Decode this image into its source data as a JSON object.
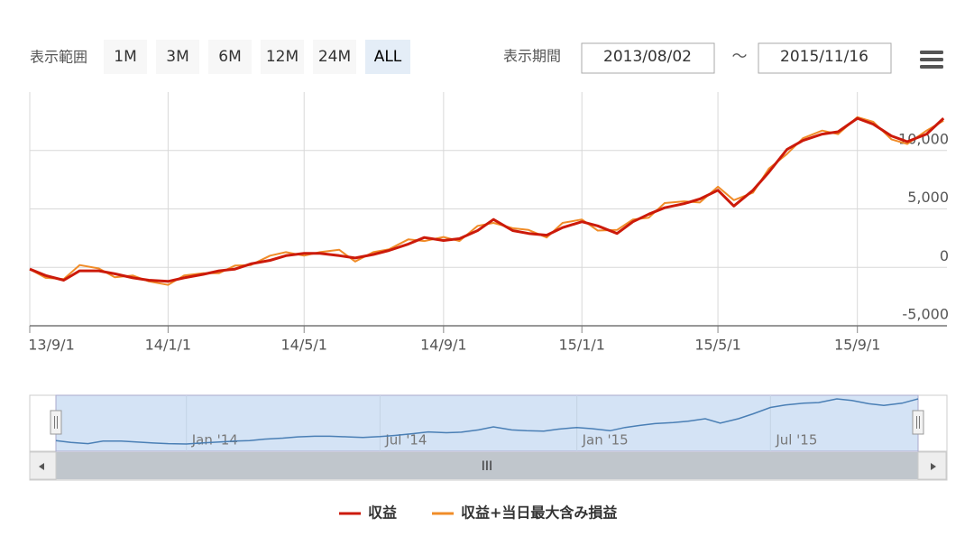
{
  "range_selector": {
    "label": "表示範囲",
    "buttons": [
      "1M",
      "3M",
      "6M",
      "12M",
      "24M",
      "ALL"
    ],
    "selected": "ALL"
  },
  "period": {
    "label": "表示期間",
    "from": "2013/08/02",
    "separator": "～",
    "to": "2015/11/16"
  },
  "navigator": {
    "ticks": [
      {
        "value": "2014-01-01",
        "label": "Jan '14"
      },
      {
        "value": "2014-07-01",
        "label": "Jul '14"
      },
      {
        "value": "2015-01-01",
        "label": "Jan '15"
      },
      {
        "value": "2015-07-01",
        "label": "Jul '15"
      }
    ],
    "scrollbar_label": "III"
  },
  "chart_data": {
    "type": "line",
    "x": [
      "2013-09-01",
      "2013-09-15",
      "2013-10-01",
      "2013-10-15",
      "2013-11-01",
      "2013-11-15",
      "2013-12-01",
      "2013-12-15",
      "2014-01-01",
      "2014-01-15",
      "2014-02-01",
      "2014-02-15",
      "2014-03-01",
      "2014-03-15",
      "2014-04-01",
      "2014-04-15",
      "2014-05-01",
      "2014-05-15",
      "2014-06-01",
      "2014-06-15",
      "2014-07-01",
      "2014-07-15",
      "2014-08-01",
      "2014-08-15",
      "2014-09-01",
      "2014-09-15",
      "2014-10-01",
      "2014-10-15",
      "2014-11-01",
      "2014-11-15",
      "2014-12-01",
      "2014-12-15",
      "2015-01-01",
      "2015-01-15",
      "2015-02-01",
      "2015-02-15",
      "2015-03-01",
      "2015-03-15",
      "2015-04-01",
      "2015-04-15",
      "2015-05-01",
      "2015-05-15",
      "2015-06-01",
      "2015-06-15",
      "2015-07-01",
      "2015-07-15",
      "2015-08-01",
      "2015-08-15",
      "2015-09-01",
      "2015-09-15",
      "2015-10-01",
      "2015-10-15",
      "2015-11-01",
      "2015-11-16"
    ],
    "series": [
      {
        "name": "収益",
        "color": "#cc1a0a",
        "values": [
          -150,
          -700,
          -1100,
          -300,
          -300,
          -550,
          -900,
          -1100,
          -1200,
          -900,
          -600,
          -300,
          -150,
          300,
          600,
          1000,
          1200,
          1200,
          1000,
          800,
          1100,
          1450,
          2000,
          2550,
          2300,
          2450,
          3150,
          4100,
          3150,
          2900,
          2750,
          3400,
          3900,
          3550,
          2900,
          3900,
          4550,
          5100,
          5450,
          5850,
          6600,
          5250,
          6600,
          8150,
          10100,
          10850,
          11400,
          11600,
          12750,
          12250,
          11250,
          10750,
          11400,
          12750
        ]
      },
      {
        "name": "収益+当日最大含み損益",
        "color": "#f08c28",
        "values": [
          -150,
          -900,
          -1000,
          200,
          -100,
          -850,
          -700,
          -1200,
          -1500,
          -700,
          -500,
          -500,
          150,
          200,
          1000,
          1300,
          1000,
          1300,
          1500,
          500,
          1300,
          1550,
          2400,
          2250,
          2600,
          2250,
          3550,
          3800,
          3350,
          3200,
          2550,
          3800,
          4100,
          3150,
          3200,
          4100,
          4250,
          5500,
          5650,
          5550,
          6900,
          5750,
          6400,
          8450,
          9700,
          11050,
          11700,
          11400,
          12850,
          12450,
          10950,
          10550,
          11700,
          12550
        ]
      }
    ],
    "xlim": [
      "2013-09-01",
      "2015-11-19"
    ],
    "xticks": [
      {
        "value": "2013-09-01",
        "label": "13/9/1"
      },
      {
        "value": "2014-01-01",
        "label": "14/1/1"
      },
      {
        "value": "2014-05-01",
        "label": "14/5/1"
      },
      {
        "value": "2014-09-01",
        "label": "14/9/1"
      },
      {
        "value": "2015-01-01",
        "label": "15/1/1"
      },
      {
        "value": "2015-05-01",
        "label": "15/5/1"
      },
      {
        "value": "2015-09-01",
        "label": "15/9/1"
      }
    ],
    "ylim": [
      -5000,
      15000
    ],
    "yticks": [
      {
        "value": -5000,
        "label": "-5,000"
      },
      0,
      {
        "value": 5000,
        "label": "5,000"
      },
      {
        "value": 10000,
        "label": "10,000"
      }
    ],
    "grid": true
  }
}
